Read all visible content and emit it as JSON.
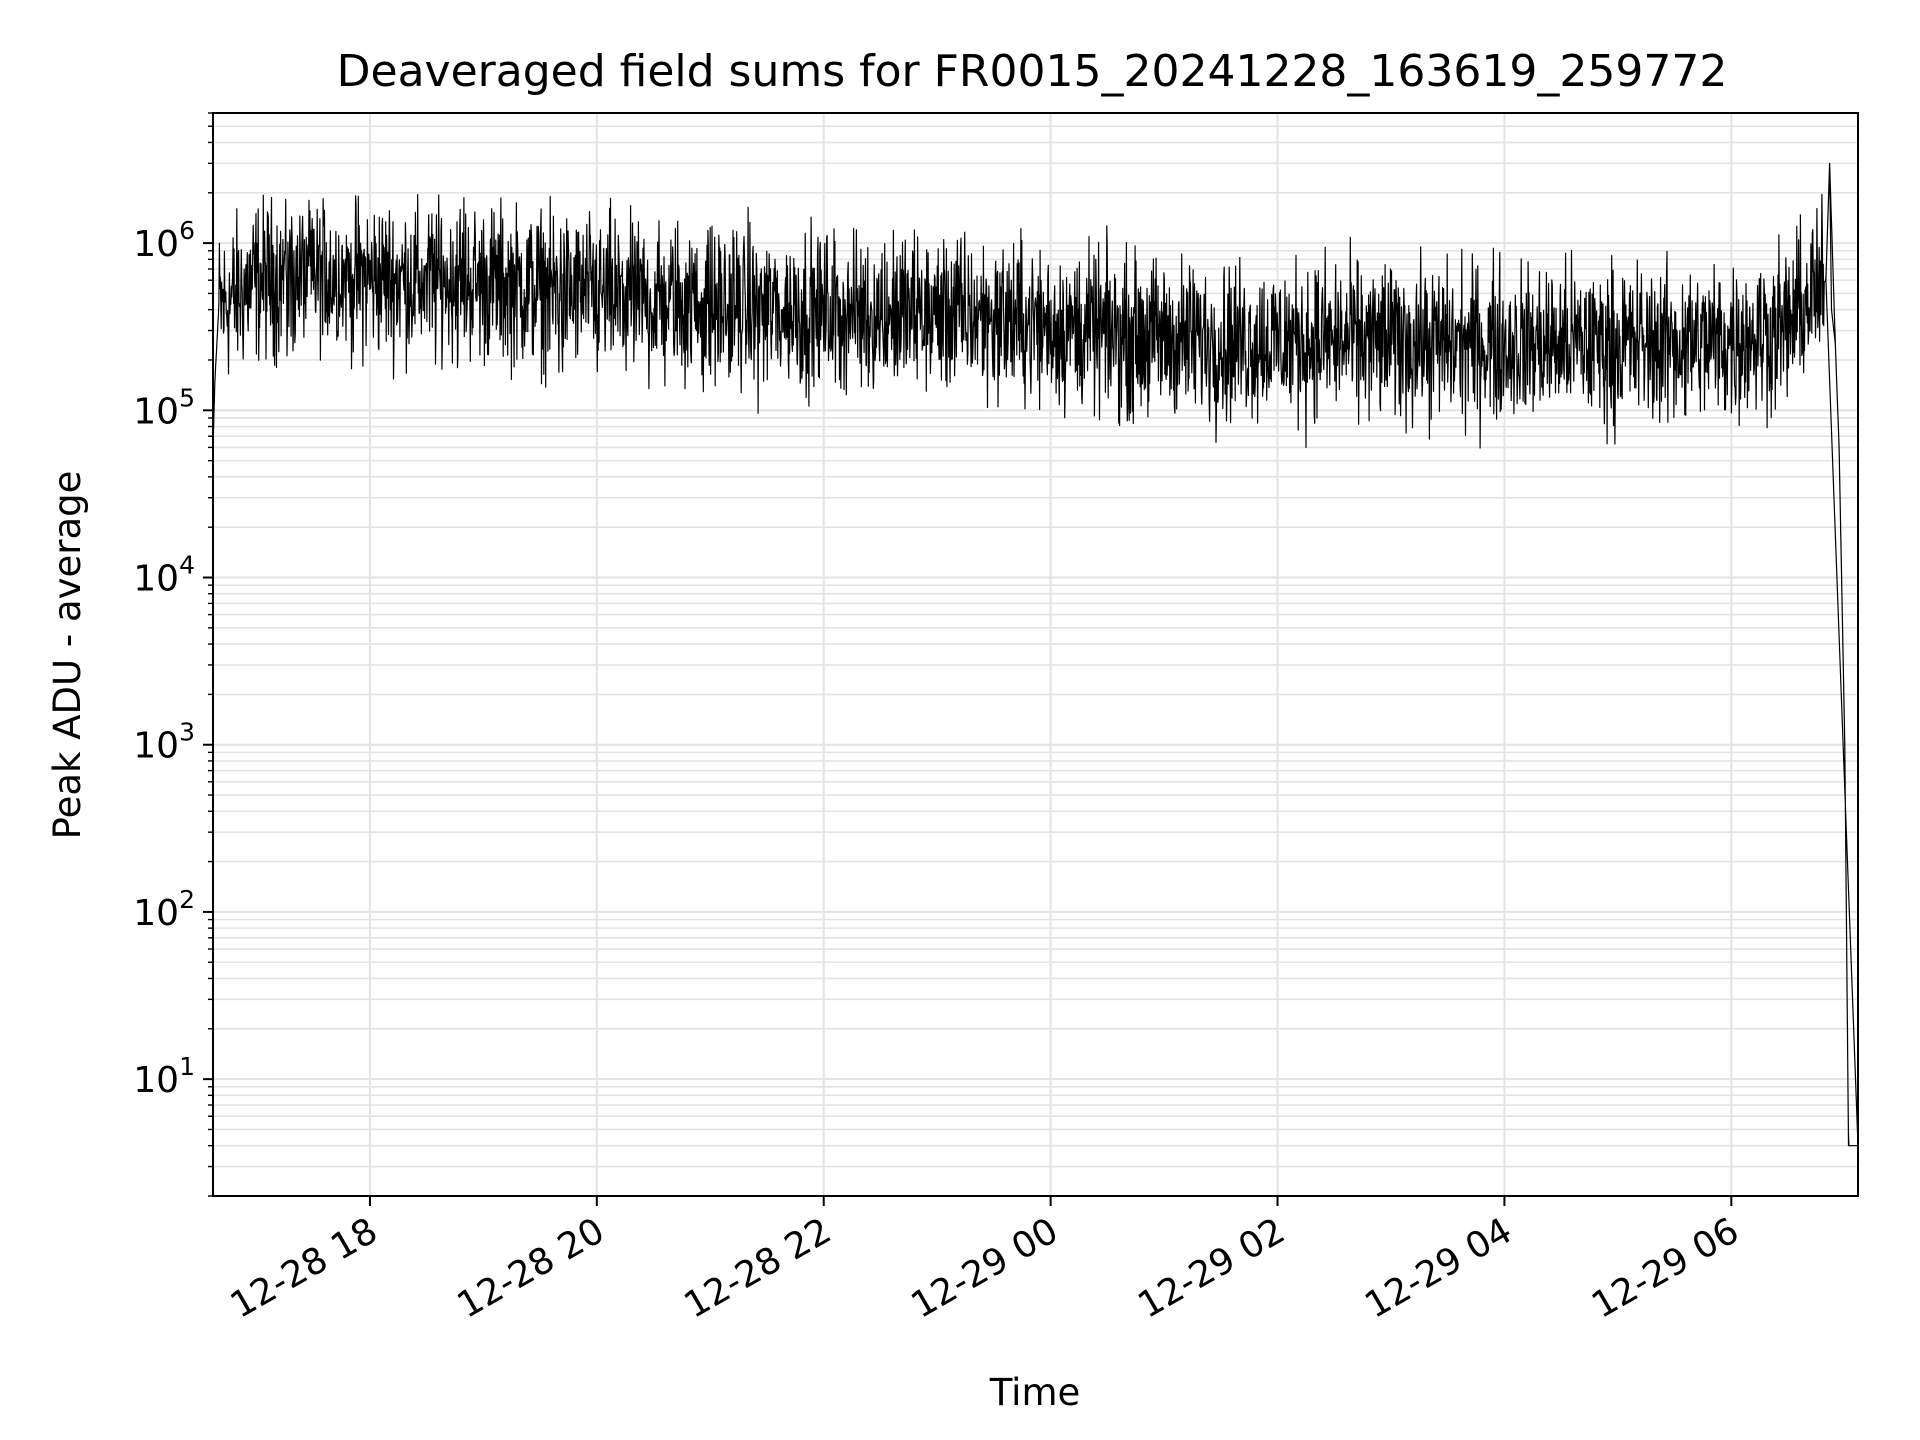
{
  "chart_data": {
    "type": "line",
    "title": "Deaveraged field sums for FR0015_20241228_163619_259772",
    "xlabel": "Time",
    "ylabel": "Peak ADU - average",
    "x_axis": {
      "scale": "time",
      "range": [
        "2024-12-28 16:37",
        "2024-12-29 07:07"
      ],
      "ticks": [
        "12-28 18",
        "12-28 20",
        "12-28 22",
        "12-29 00",
        "12-29 02",
        "12-29 04",
        "12-29 06"
      ],
      "tick_rotation_deg": 30
    },
    "y_axis": {
      "scale": "log",
      "range": [
        2,
        6000000
      ],
      "ticks": [
        {
          "base": "10",
          "exp": "1"
        },
        {
          "base": "10",
          "exp": "2"
        },
        {
          "base": "10",
          "exp": "3"
        },
        {
          "base": "10",
          "exp": "4"
        },
        {
          "base": "10",
          "exp": "5"
        },
        {
          "base": "10",
          "exp": "6"
        }
      ]
    },
    "grid": true,
    "legend": "none",
    "colors": {
      "line": "#000000",
      "grid": "#e3e3e3",
      "background": "#ffffff"
    },
    "series": [
      {
        "points": [
          [
            "2024-12-28 16:37",
            60000
          ],
          [
            "2024-12-28 16:38",
            150000
          ],
          [
            "2024-12-28 16:40",
            400000
          ],
          [
            "2024-12-28 17:00",
            600000
          ],
          [
            "2024-12-28 17:30",
            650000
          ],
          [
            "2024-12-28 18:00",
            620000
          ],
          [
            "2024-12-28 18:30",
            600000
          ],
          [
            "2024-12-28 19:00",
            580000
          ],
          [
            "2024-12-28 19:30",
            530000
          ],
          [
            "2024-12-28 20:00",
            480000
          ],
          [
            "2024-12-28 20:30",
            450000
          ],
          [
            "2024-12-28 21:00",
            420000
          ],
          [
            "2024-12-28 21:30",
            400000
          ],
          [
            "2024-12-28 22:00",
            390000
          ],
          [
            "2024-12-28 22:30",
            380000
          ],
          [
            "2024-12-28 23:00",
            380000
          ],
          [
            "2024-12-28 23:30",
            360000
          ],
          [
            "2024-12-29 00:00",
            320000
          ],
          [
            "2024-12-29 00:30",
            290000
          ],
          [
            "2024-12-29 01:00",
            270000
          ],
          [
            "2024-12-29 01:30",
            260000
          ],
          [
            "2024-12-29 02:00",
            260000
          ],
          [
            "2024-12-29 02:30",
            260000
          ],
          [
            "2024-12-29 03:00",
            260000
          ],
          [
            "2024-12-29 03:30",
            250000
          ],
          [
            "2024-12-29 04:00",
            250000
          ],
          [
            "2024-12-29 04:30",
            250000
          ],
          [
            "2024-12-29 05:00",
            250000
          ],
          [
            "2024-12-29 05:30",
            250000
          ],
          [
            "2024-12-29 06:00",
            260000
          ],
          [
            "2024-12-29 06:30",
            320000
          ],
          [
            "2024-12-29 06:50",
            600000
          ],
          [
            "2024-12-29 06:52",
            3000000
          ],
          [
            "2024-12-29 06:55",
            250000
          ],
          [
            "2024-12-29 06:57",
            60000
          ],
          [
            "2024-12-29 07:00",
            1000
          ],
          [
            "2024-12-29 07:02",
            4
          ],
          [
            "2024-12-29 07:07",
            4
          ]
        ],
        "min_trough": 50000,
        "max_peak": 3000000
      }
    ]
  }
}
